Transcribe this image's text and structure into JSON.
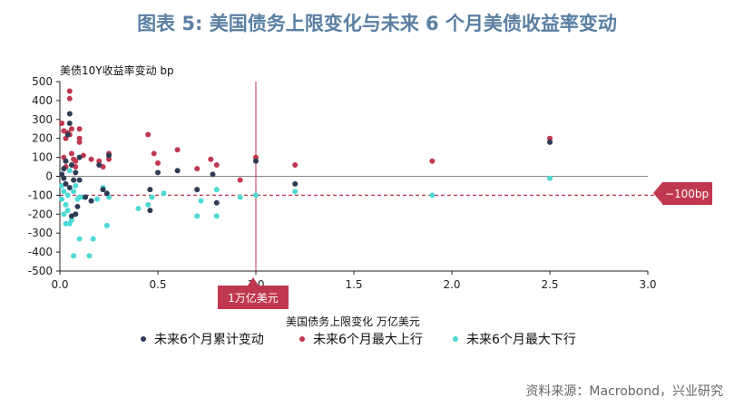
{
  "title": "图表 5:  美国债务上限变化与未来 6 个月美债收益率变动",
  "source": "资料来源：Macrobond，兴业研究",
  "colors": {
    "cum": "#2e3b55",
    "up": "#c0384f",
    "down": "#4ddad6",
    "ref": "#c0384f"
  },
  "chart_data": {
    "type": "scatter",
    "ylabel": "美债10Y收益率变动  bp",
    "xlabel": "美国债务上限变化  万亿美元",
    "xlim": [
      0,
      3.0
    ],
    "ylim": [
      -500,
      500
    ],
    "xticks": [
      "0.0",
      "0.5",
      "1.0",
      "1.5",
      "2.0",
      "2.5",
      "3.0"
    ],
    "yticks": [
      "500",
      "400",
      "300",
      "200",
      "100",
      "0",
      "-100",
      "-200",
      "-300",
      "-400",
      "-500"
    ],
    "legend_position": "bottom",
    "reference_lines": {
      "vertical": {
        "x": 1.0,
        "label": "1万亿美元"
      },
      "horizontal": {
        "y": -100,
        "label": "−100bp"
      }
    },
    "series": [
      {
        "name": "未来6个月累计变动",
        "points": [
          [
            0.01,
            10
          ],
          [
            0.02,
            -10
          ],
          [
            0.02,
            40
          ],
          [
            0.03,
            80
          ],
          [
            0.03,
            -40
          ],
          [
            0.04,
            220
          ],
          [
            0.05,
            330
          ],
          [
            0.05,
            280
          ],
          [
            0.05,
            -60
          ],
          [
            0.06,
            60
          ],
          [
            0.06,
            -210
          ],
          [
            0.07,
            -20
          ],
          [
            0.08,
            20
          ],
          [
            0.08,
            -200
          ],
          [
            0.09,
            -160
          ],
          [
            0.1,
            100
          ],
          [
            0.1,
            -20
          ],
          [
            0.13,
            -110
          ],
          [
            0.16,
            -130
          ],
          [
            0.2,
            60
          ],
          [
            0.22,
            -70
          ],
          [
            0.24,
            -90
          ],
          [
            0.25,
            110
          ],
          [
            0.46,
            -70
          ],
          [
            0.46,
            -180
          ],
          [
            0.5,
            20
          ],
          [
            0.6,
            30
          ],
          [
            0.7,
            -70
          ],
          [
            0.78,
            10
          ],
          [
            0.8,
            -140
          ],
          [
            1.0,
            80
          ],
          [
            1.2,
            -40
          ],
          [
            2.5,
            180
          ]
        ]
      },
      {
        "name": "未来6个月最大上行",
        "points": [
          [
            0.01,
            280
          ],
          [
            0.02,
            240
          ],
          [
            0.02,
            100
          ],
          [
            0.03,
            200
          ],
          [
            0.03,
            50
          ],
          [
            0.04,
            230
          ],
          [
            0.05,
            450
          ],
          [
            0.05,
            410
          ],
          [
            0.05,
            220
          ],
          [
            0.06,
            250
          ],
          [
            0.06,
            120
          ],
          [
            0.07,
            90
          ],
          [
            0.08,
            80
          ],
          [
            0.08,
            50
          ],
          [
            0.1,
            200
          ],
          [
            0.1,
            180
          ],
          [
            0.1,
            250
          ],
          [
            0.12,
            110
          ],
          [
            0.16,
            90
          ],
          [
            0.2,
            80
          ],
          [
            0.22,
            50
          ],
          [
            0.25,
            120
          ],
          [
            0.25,
            90
          ],
          [
            0.45,
            220
          ],
          [
            0.48,
            120
          ],
          [
            0.5,
            70
          ],
          [
            0.6,
            140
          ],
          [
            0.7,
            40
          ],
          [
            0.77,
            90
          ],
          [
            0.8,
            60
          ],
          [
            0.92,
            -20
          ],
          [
            1.0,
            100
          ],
          [
            1.2,
            60
          ],
          [
            1.9,
            80
          ],
          [
            2.5,
            200
          ]
        ]
      },
      {
        "name": "未来6个月最大下行",
        "points": [
          [
            0.01,
            -50
          ],
          [
            0.01,
            -120
          ],
          [
            0.02,
            -80
          ],
          [
            0.02,
            -200
          ],
          [
            0.03,
            -150
          ],
          [
            0.03,
            -250
          ],
          [
            0.04,
            -180
          ],
          [
            0.04,
            -100
          ],
          [
            0.05,
            30
          ],
          [
            0.05,
            -250
          ],
          [
            0.06,
            -230
          ],
          [
            0.07,
            -420
          ],
          [
            0.07,
            -80
          ],
          [
            0.08,
            -50
          ],
          [
            0.09,
            -120
          ],
          [
            0.1,
            -110
          ],
          [
            0.1,
            -330
          ],
          [
            0.12,
            -110
          ],
          [
            0.15,
            -420
          ],
          [
            0.17,
            -330
          ],
          [
            0.19,
            -120
          ],
          [
            0.22,
            -60
          ],
          [
            0.24,
            -260
          ],
          [
            0.25,
            -110
          ],
          [
            0.4,
            -170
          ],
          [
            0.45,
            -150
          ],
          [
            0.47,
            -110
          ],
          [
            0.53,
            -90
          ],
          [
            0.7,
            -210
          ],
          [
            0.72,
            -130
          ],
          [
            0.8,
            -210
          ],
          [
            0.8,
            -70
          ],
          [
            0.92,
            -110
          ],
          [
            1.0,
            -100
          ],
          [
            1.2,
            -80
          ],
          [
            1.9,
            -100
          ],
          [
            2.5,
            -10
          ]
        ]
      }
    ]
  }
}
